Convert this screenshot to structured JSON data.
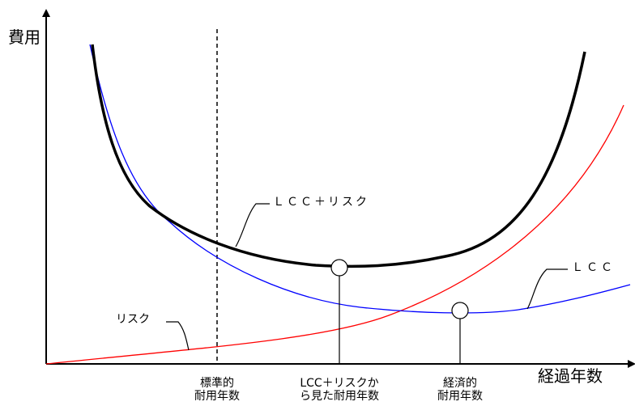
{
  "axes": {
    "y_label": "費用",
    "x_label": "経過年数"
  },
  "curves": {
    "lcc_risk": {
      "label": "ＬＣＣ＋リスク",
      "color": "#000000"
    },
    "lcc": {
      "label": "ＬＣＣ",
      "color": "#0000ff"
    },
    "risk": {
      "label": "リスク",
      "color": "#ff0000"
    }
  },
  "markers": {
    "standard": {
      "line1": "標準的",
      "line2": "耐用年数"
    },
    "lcc_risk_life": {
      "line1": "LCC＋リスクか",
      "line2": "ら見た耐用年数"
    },
    "economic": {
      "line1": "経済的",
      "line2": "耐用年数"
    }
  }
}
